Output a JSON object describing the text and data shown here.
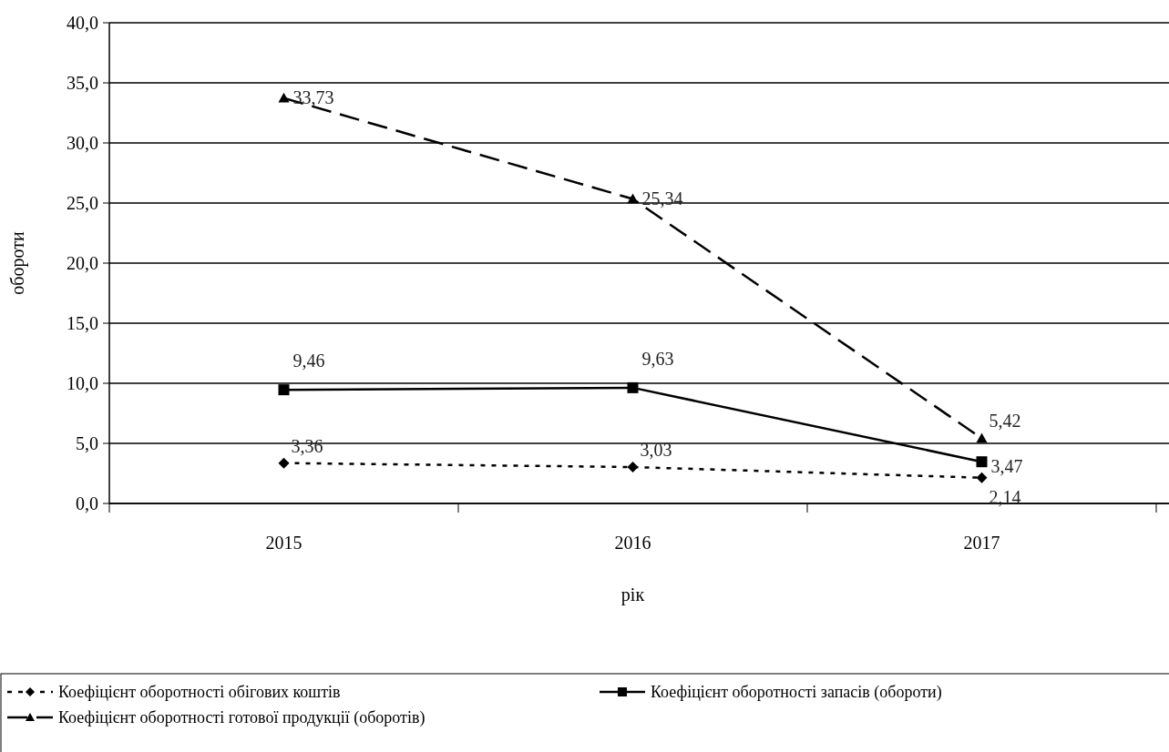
{
  "chart_data": {
    "type": "line",
    "xlabel": "рік",
    "ylabel": "обороти",
    "categories": [
      "2015",
      "2016",
      "2017"
    ],
    "ylim": [
      0,
      40
    ],
    "yticks": [
      {
        "value": 0,
        "label": "0,0"
      },
      {
        "value": 5,
        "label": "5,0"
      },
      {
        "value": 10,
        "label": "10,0"
      },
      {
        "value": 15,
        "label": "15,0"
      },
      {
        "value": 20,
        "label": "20,0"
      },
      {
        "value": 25,
        "label": "25,0"
      },
      {
        "value": 30,
        "label": "30,0"
      },
      {
        "value": 35,
        "label": "35,0"
      },
      {
        "value": 40,
        "label": "40,0"
      }
    ],
    "grid": "y",
    "legend": "bottom",
    "series": [
      {
        "name": "Коефіцієнт оборотності обігових коштів",
        "color": "#000000",
        "marker": "diamond",
        "line_style": "dotted",
        "values": [
          3.36,
          3.03,
          2.14
        ],
        "value_labels": [
          "3,36",
          "3,03",
          "2,14"
        ]
      },
      {
        "name": "Коефіцієнт оборотності запасів (обороти)",
        "color": "#000000",
        "marker": "square",
        "line_style": "solid",
        "values": [
          9.46,
          9.63,
          3.47
        ],
        "value_labels": [
          "9,46",
          "9,63",
          "3,47"
        ]
      },
      {
        "name": "Коефіцієнт оборотності готової продукції (оборотів)",
        "color": "#000000",
        "marker": "triangle",
        "line_style": "dashed",
        "values": [
          33.73,
          25.34,
          5.42
        ],
        "value_labels": [
          "33,73",
          "25,34",
          "5,42"
        ]
      }
    ]
  }
}
